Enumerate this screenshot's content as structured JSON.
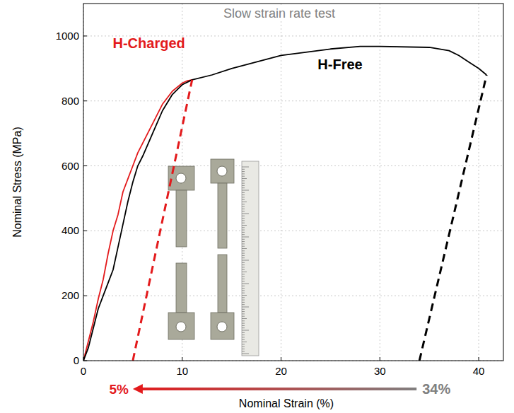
{
  "chart_data": {
    "type": "line",
    "title": "Slow strain rate test",
    "x_label": "Nominal Strain (%)",
    "y_label": "Nominal Stress (MPa)",
    "xlim": [
      0,
      42.5
    ],
    "ylim": [
      0,
      1100
    ],
    "xticks": [
      0,
      10,
      20,
      30,
      40
    ],
    "yticks": [
      0,
      200,
      400,
      600,
      800,
      1000
    ],
    "grid": true,
    "series": [
      {
        "name": "H-Charged",
        "color": "#e31a1c",
        "x": [
          0,
          0.5,
          1,
          1.5,
          2,
          2.5,
          3,
          3.5,
          4,
          4.5,
          5,
          5.5,
          6,
          7,
          8,
          9,
          10,
          10.5,
          11
        ],
        "values": [
          0,
          60,
          120,
          190,
          250,
          330,
          400,
          450,
          520,
          560,
          600,
          640,
          670,
          730,
          790,
          830,
          855,
          862,
          865
        ]
      },
      {
        "name": "H-Free",
        "color": "#000000",
        "x": [
          0,
          0.5,
          1,
          1.5,
          2,
          2.5,
          3,
          3.5,
          4,
          4.5,
          5,
          5.5,
          6,
          7,
          8,
          9,
          10,
          11,
          13,
          15,
          20,
          25,
          28,
          30,
          35,
          37,
          38,
          39,
          40,
          40.8
        ],
        "values": [
          0,
          40,
          100,
          160,
          200,
          240,
          280,
          350,
          420,
          490,
          550,
          600,
          630,
          700,
          770,
          820,
          850,
          865,
          880,
          900,
          940,
          960,
          968,
          968,
          965,
          955,
          940,
          920,
          900,
          880
        ]
      },
      {
        "color": "#e31a1c",
        "line_style": "dashed",
        "x": [
          5,
          11
        ],
        "values": [
          0,
          865
        ]
      },
      {
        "color": "#000000",
        "line_style": "dashed",
        "x": [
          34,
          40.8
        ],
        "values": [
          0,
          880
        ]
      }
    ],
    "strain_arrow": {
      "from": 34,
      "to": 5,
      "from_label": "34%",
      "to_label": "5%",
      "from_color": "#808080",
      "to_color": "#e31a1c"
    }
  }
}
